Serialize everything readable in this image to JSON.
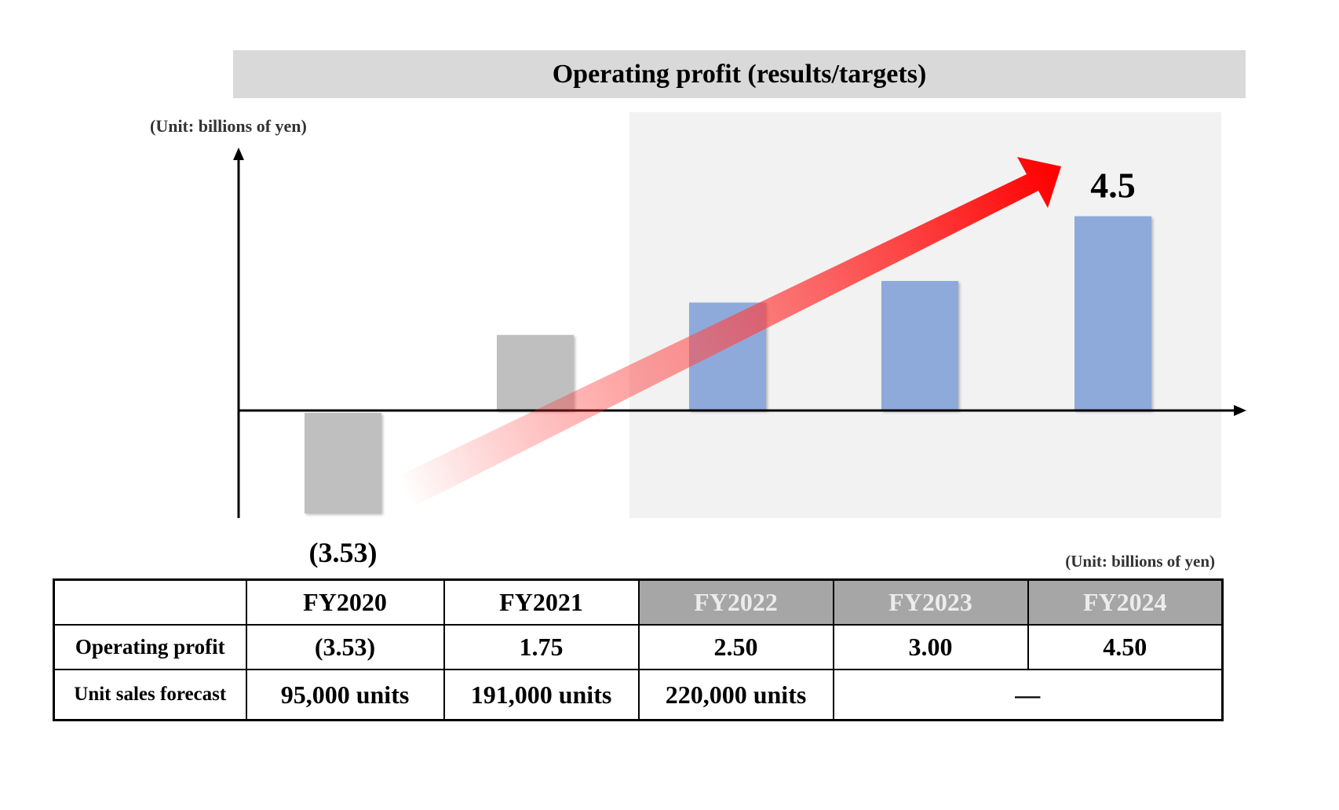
{
  "title": "Operating profit (results/targets)",
  "unit_label_chart": "(Unit: billions of yen)",
  "unit_label_table": "(Unit: billions of yen)",
  "colors": {
    "result_bar": "#bfbfbf",
    "target_bar": "#8eaadb",
    "target_panel": "#f2f2f2",
    "arrow": "#ff0000",
    "table_target_header": "#a6a6a6"
  },
  "chart_data": {
    "type": "bar",
    "categories": [
      "FY2020",
      "FY2021",
      "FY2022",
      "FY2023",
      "FY2024"
    ],
    "values": [
      -3.53,
      1.75,
      2.5,
      3.0,
      4.5
    ],
    "kinds": [
      "result",
      "result",
      "target",
      "target",
      "target"
    ],
    "data_labels": [
      "(3.53)",
      "",
      "",
      "",
      "4.5"
    ],
    "title": "Operating profit (results/targets)",
    "ylabel": "(Unit: billions of yen)",
    "ylim": [
      -1.6,
      3.6
    ],
    "annotations": [
      "upward trend arrow from FY2020 to FY2024"
    ],
    "grid": false
  },
  "table": {
    "columns": [
      "",
      "FY2020",
      "FY2021",
      "FY2022",
      "FY2023",
      "FY2024"
    ],
    "target_columns": [
      3,
      4,
      5
    ],
    "rows": [
      {
        "label": "Operating profit",
        "cells": [
          "(3.53)",
          "1.75",
          "2.50",
          "3.00",
          "4.50"
        ]
      },
      {
        "label": "Unit sales forecast",
        "cells": [
          "95,000 units",
          "191,000 units",
          "220,000 units",
          "―"
        ]
      }
    ]
  }
}
